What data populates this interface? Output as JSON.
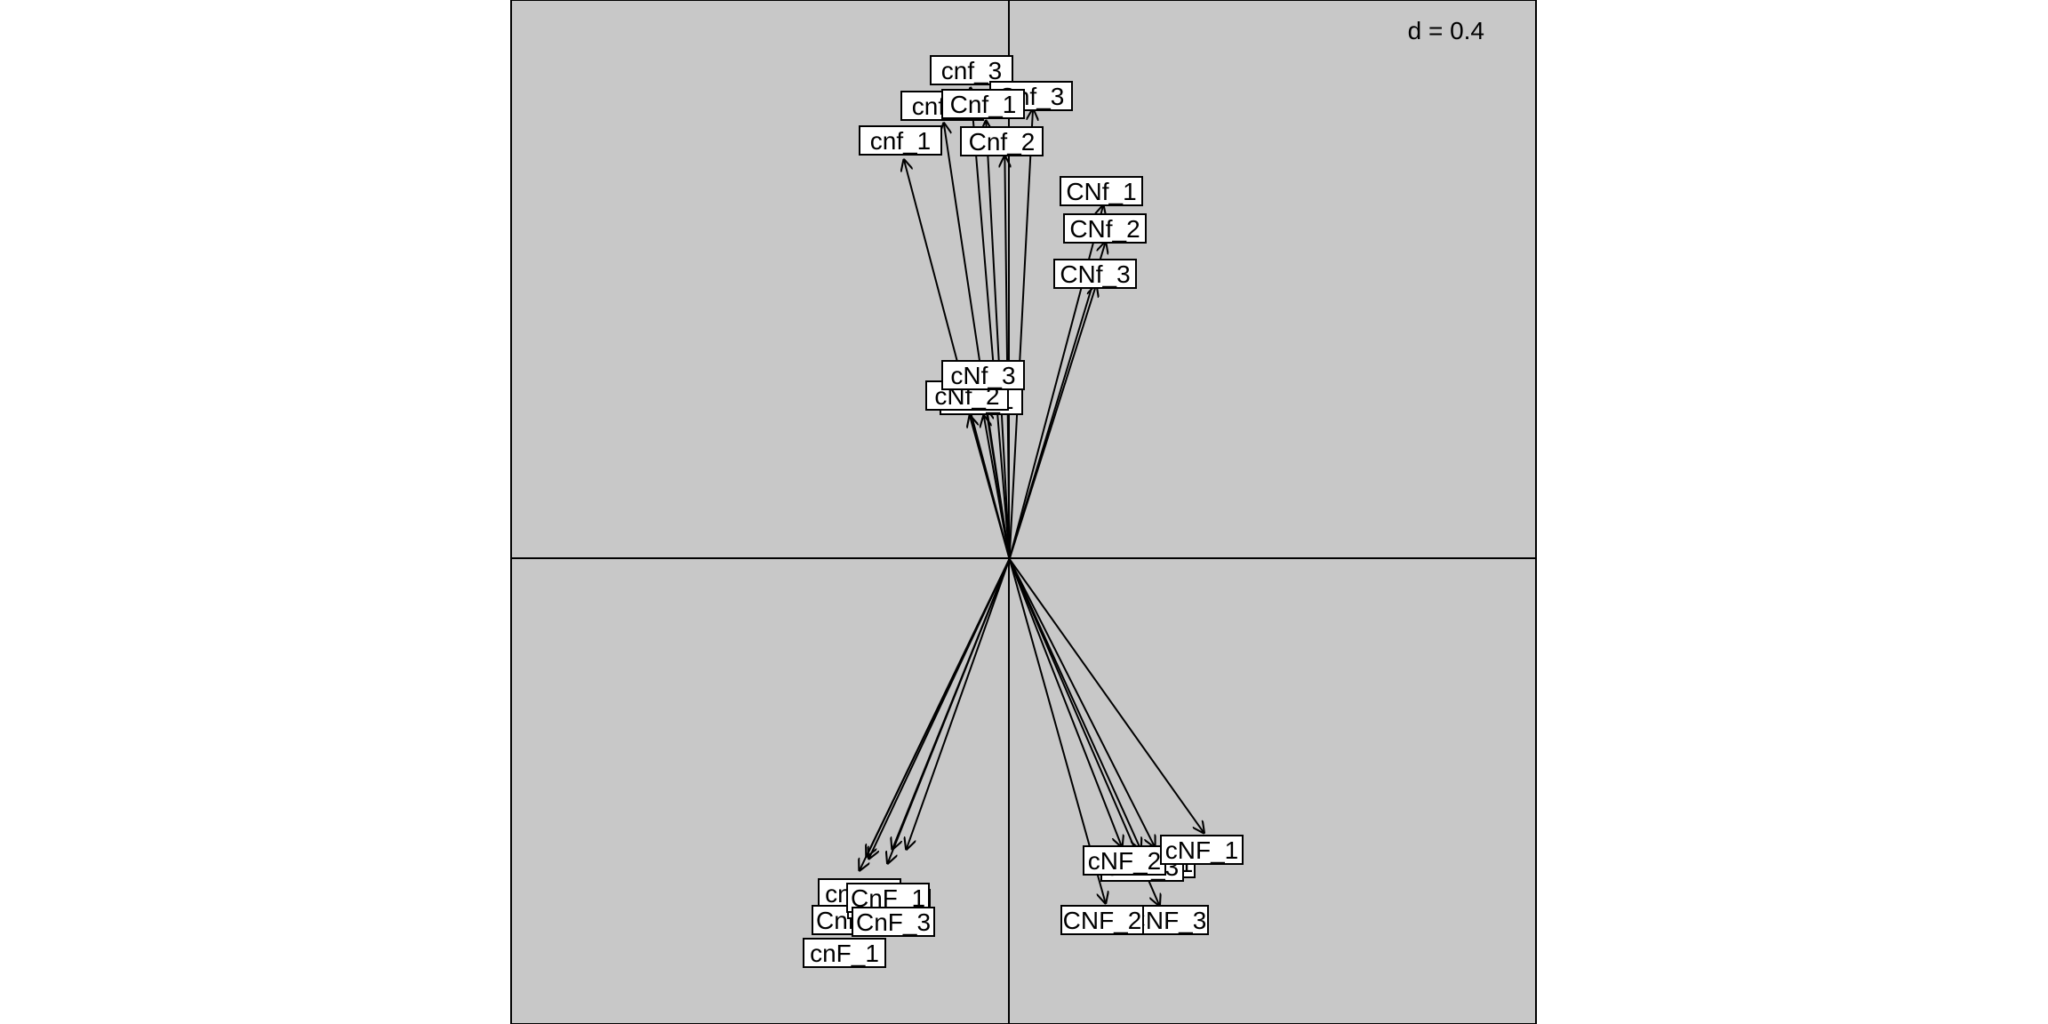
{
  "chart_data": {
    "type": "scatter",
    "subtype": "biplot-arrows",
    "scale_label": "d = 0.4",
    "background_color": "#c8c8c8",
    "grid": false,
    "axes_lines_through_origin": true,
    "xlim": [
      -1.06,
      1.12
    ],
    "ylim": [
      -0.99,
      1.19
    ],
    "vectors": [
      {
        "label": "cnf_1",
        "x": -0.225,
        "y": 0.852
      },
      {
        "label": "cnf_2",
        "x": -0.14,
        "y": 0.93
      },
      {
        "label": "cnf_3",
        "x": -0.083,
        "y": 1.005
      },
      {
        "label": "Cnf_1",
        "x": -0.05,
        "y": 0.935
      },
      {
        "label": "Cnf_2",
        "x": -0.01,
        "y": 0.86
      },
      {
        "label": "Cnf_3",
        "x": 0.05,
        "y": 0.96
      },
      {
        "label": "CNf_1",
        "x": 0.2,
        "y": 0.755
      },
      {
        "label": "CNf_2",
        "x": 0.205,
        "y": 0.677
      },
      {
        "label": "CNf_3",
        "x": 0.185,
        "y": 0.585
      },
      {
        "label": "cNf_1",
        "x": -0.055,
        "y": 0.307
      },
      {
        "label": "cNf_2",
        "x": -0.085,
        "y": 0.307
      },
      {
        "label": "cNf_3",
        "x": -0.05,
        "y": 0.322
      },
      {
        "label": "cnF_1",
        "x": -0.32,
        "y": -0.665
      },
      {
        "label": "cnF_2",
        "x": -0.305,
        "y": -0.635
      },
      {
        "label": "cnF_3",
        "x": -0.25,
        "y": -0.62
      },
      {
        "label": "CnF_1",
        "x": -0.26,
        "y": -0.65
      },
      {
        "label": "CnF_2",
        "x": -0.3,
        "y": -0.64
      },
      {
        "label": "CnF_3",
        "x": -0.22,
        "y": -0.62
      },
      {
        "label": "cNF_1",
        "x": 0.415,
        "y": -0.585
      },
      {
        "label": "cNF_2",
        "x": 0.24,
        "y": -0.615
      },
      {
        "label": "cNF_3",
        "x": 0.31,
        "y": -0.615
      },
      {
        "label": "CNF_1",
        "x": 0.28,
        "y": -0.62
      },
      {
        "label": "CNF_2",
        "x": 0.205,
        "y": -0.735
      },
      {
        "label": "CNF_3",
        "x": 0.32,
        "y": -0.74
      }
    ]
  },
  "labels_drawn": [
    {
      "text": "cnf_3",
      "ref": "cnf_3",
      "cx": 1093,
      "cy": 79
    },
    {
      "text": "Cnf_3",
      "ref": "Cnf_3",
      "cx": 1160,
      "cy": 108
    },
    {
      "text": "cnf_2",
      "ref": "cnf_2",
      "cx": 1060,
      "cy": 119
    },
    {
      "text": "Cnf_1",
      "ref": "Cnf_1",
      "cx": 1106,
      "cy": 117
    },
    {
      "text": "cnf_1",
      "ref": "cnf_1",
      "cx": 1013,
      "cy": 158
    },
    {
      "text": "Cnf_2",
      "ref": "Cnf_2",
      "cx": 1127,
      "cy": 159
    },
    {
      "text": "CNf_1",
      "ref": "CNf_1",
      "cx": 1239,
      "cy": 215
    },
    {
      "text": "CNf_2",
      "ref": "CNf_2",
      "cx": 1243,
      "cy": 257
    },
    {
      "text": "CNf_3",
      "ref": "CNf_3",
      "cx": 1232,
      "cy": 308
    },
    {
      "text": "cNf_1",
      "ref": "cNf_1",
      "cx": 1104,
      "cy": 450
    },
    {
      "text": "cNf_2",
      "ref": "cNf_2",
      "cx": 1088,
      "cy": 445
    },
    {
      "text": "cNf_3",
      "ref": "cNf_3",
      "cx": 1106,
      "cy": 422
    },
    {
      "text": "cnF_2",
      "ref": "cnF_2",
      "cx": 967,
      "cy": 1005
    },
    {
      "text": "CnF_2",
      "ref": "CnF_2",
      "cx": 960,
      "cy": 1035
    },
    {
      "text": "cnF_3",
      "ref": "cnF_3",
      "cx": 1000,
      "cy": 1017
    },
    {
      "text": "CnF_1",
      "ref": "CnF_1",
      "cx": 999,
      "cy": 1010
    },
    {
      "text": "CnF_3",
      "ref": "CnF_3",
      "cx": 1005,
      "cy": 1037
    },
    {
      "text": "cnF_1",
      "ref": "cnF_1",
      "cx": 950,
      "cy": 1072
    },
    {
      "text": "CNF_1",
      "ref": "CNF_1",
      "cx": 1298,
      "cy": 971
    },
    {
      "text": "cNF_3",
      "ref": "cNF_3",
      "cx": 1285,
      "cy": 975
    },
    {
      "text": "cNF_2",
      "ref": "cNF_2",
      "cx": 1265,
      "cy": 968
    },
    {
      "text": "cNF_1",
      "ref": "cNF_1",
      "cx": 1352,
      "cy": 956
    },
    {
      "text": "CNF_3",
      "ref": "CNF_3",
      "cx": 1313,
      "cy": 1035
    },
    {
      "text": "CNF_2",
      "ref": "CNF_2",
      "cx": 1240,
      "cy": 1035
    }
  ]
}
